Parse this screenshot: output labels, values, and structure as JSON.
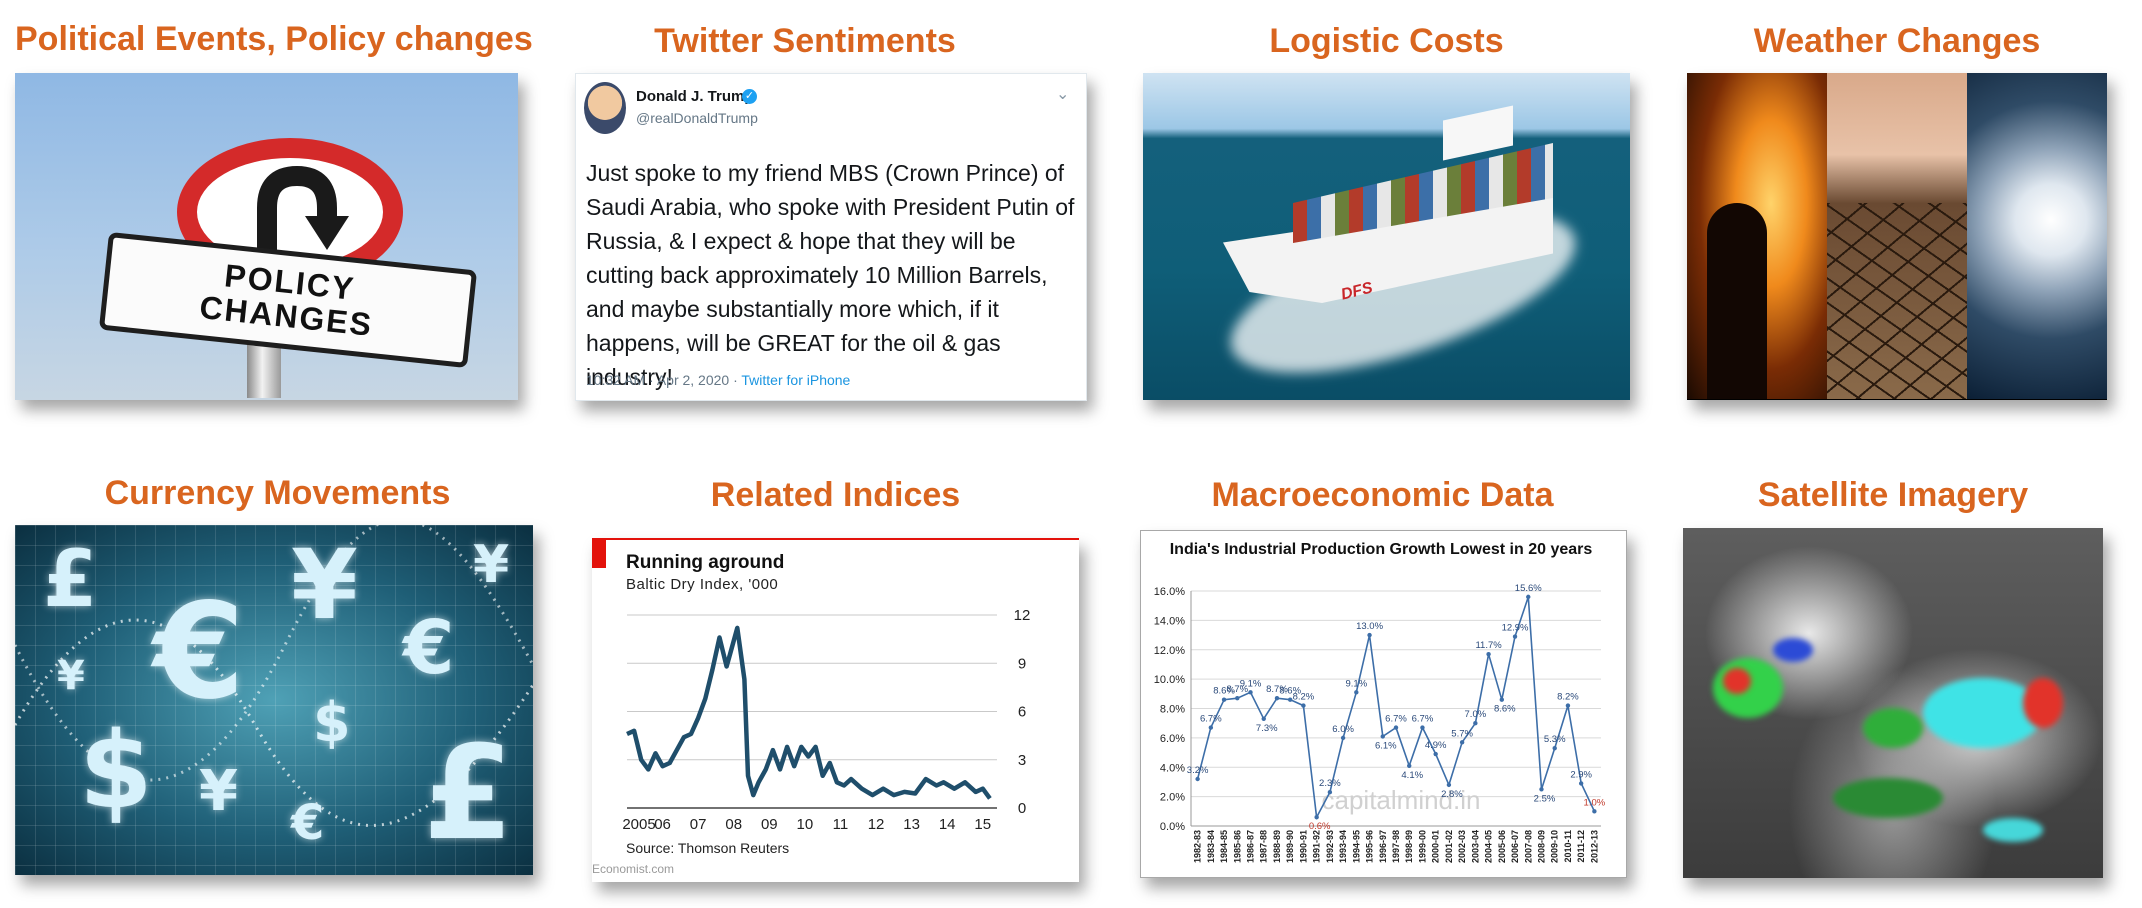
{
  "titles": {
    "political": "Political Events, Policy changes",
    "twitter": "Twitter Sentiments",
    "logistic": "Logistic Costs",
    "weather": "Weather Changes",
    "currency": "Currency Movements",
    "indices": "Related Indices",
    "macro": "Macroeconomic Data",
    "satellite": "Satellite Imagery"
  },
  "policy_sign": {
    "line1": "POLICY",
    "line2": "CHANGES"
  },
  "tweet": {
    "name": "Donald J. Trump",
    "handle": "@realDonaldTrump",
    "text": "Just spoke to my friend MBS (Crown Prince) of Saudi Arabia, who spoke with President Putin of Russia, & I expect & hope that they will be cutting back approximately 10 Million Barrels, and maybe substantially more which, if it happens, will be GREAT for the oil & gas industry!",
    "timestamp": "10:32 AM · Apr 2, 2020 · ",
    "source": "Twitter for iPhone"
  },
  "ship": {
    "hull_text": "DFS"
  },
  "currency_symbols": [
    "£",
    "¥",
    "¥",
    "€",
    "€",
    "¥",
    "$",
    "$",
    "¥",
    "€",
    "£"
  ],
  "colors": {
    "title_orange": "#d9651f",
    "economist_red": "#e3120b",
    "line_teal": "#1f4e6b",
    "macro_line": "#3d6ea8"
  },
  "chart_data": [
    {
      "type": "line",
      "title": "Running aground",
      "subtitle": "Baltic Dry Index, '000",
      "source": "Source: Thomson Reuters",
      "brand": "Economist.com",
      "x_ticks": [
        "2005",
        "06",
        "07",
        "08",
        "09",
        "10",
        "11",
        "12",
        "13",
        "14",
        "15"
      ],
      "y_ticks": [
        0,
        3,
        6,
        9,
        12
      ],
      "ylim": [
        0,
        12
      ],
      "xlim": [
        2005,
        2015.4
      ],
      "grid": true,
      "series": [
        {
          "x": [
            2005.0,
            2005.2,
            2005.4,
            2005.6,
            2005.8,
            2006.0,
            2006.2,
            2006.4,
            2006.6,
            2006.8,
            2007.0,
            2007.2,
            2007.4,
            2007.6,
            2007.8,
            2007.9,
            2008.1,
            2008.3,
            2008.4,
            2008.55,
            2008.7,
            2008.9,
            2009.1,
            2009.3,
            2009.5,
            2009.7,
            2009.9,
            2010.1,
            2010.3,
            2010.5,
            2010.7,
            2010.9,
            2011.1,
            2011.3,
            2011.6,
            2011.9,
            2012.2,
            2012.5,
            2012.8,
            2013.1,
            2013.4,
            2013.7,
            2013.9,
            2014.2,
            2014.5,
            2014.8,
            2015.0,
            2015.2
          ],
          "y": [
            4.6,
            4.8,
            3.0,
            2.4,
            3.4,
            2.6,
            2.8,
            3.6,
            4.4,
            4.6,
            5.6,
            6.8,
            8.6,
            10.6,
            8.8,
            9.6,
            11.2,
            8.0,
            2.0,
            0.8,
            1.6,
            2.4,
            3.6,
            2.4,
            3.8,
            2.6,
            3.8,
            3.2,
            3.8,
            2.0,
            2.8,
            1.6,
            1.4,
            1.8,
            1.2,
            0.8,
            1.2,
            0.8,
            1.0,
            0.9,
            1.8,
            1.4,
            1.6,
            1.2,
            1.6,
            1.0,
            1.2,
            0.6
          ]
        }
      ]
    },
    {
      "type": "line",
      "title": "India's Industrial Production Growth Lowest in 20 years",
      "categories": [
        "1982-83",
        "1983-84",
        "1984-85",
        "1985-86",
        "1986-87",
        "1987-88",
        "1988-89",
        "1989-90",
        "1990-91",
        "1991-92",
        "1992-93",
        "1993-94",
        "1994-95",
        "1995-96",
        "1996-97",
        "1997-98",
        "1998-99",
        "1999-00",
        "2000-01",
        "2001-02",
        "2002-03",
        "2003-04",
        "2004-05",
        "2005-06",
        "2006-07",
        "2007-08",
        "2008-09",
        "2009-10",
        "2010-11",
        "2011-12",
        "2012-13"
      ],
      "values": [
        3.2,
        6.7,
        8.6,
        8.7,
        9.1,
        7.3,
        8.7,
        8.6,
        8.2,
        0.6,
        2.3,
        6.0,
        9.1,
        13.0,
        6.1,
        6.7,
        4.1,
        6.7,
        4.9,
        2.8,
        5.7,
        7.0,
        11.7,
        8.6,
        12.9,
        15.6,
        2.5,
        5.3,
        8.2,
        2.9,
        1.0
      ],
      "data_labels": [
        "3.2%",
        "6.7%",
        "8.6%",
        "8.7%",
        "9.1%",
        "7.3%",
        "8.7%",
        "8.6%",
        "8.2%",
        "0.6%",
        "2.3%",
        "6.0%",
        "9.1%",
        "13.0%",
        "6.1%",
        "6.7%",
        "4.1%",
        "6.7%",
        "4.9%",
        "2.8%",
        "5.7%",
        "7.0%",
        "11.7%",
        "8.6%",
        "12.9%",
        "15.6%",
        "2.5%",
        "5.3%",
        "8.2%",
        "2.9%",
        "1.0%"
      ],
      "highlighted_labels": [
        "0.6%",
        "1.0%"
      ],
      "y_ticks": [
        "0.0%",
        "2.0%",
        "4.0%",
        "6.0%",
        "8.0%",
        "10.0%",
        "12.0%",
        "14.0%",
        "16.0%"
      ],
      "ylim": [
        0,
        16
      ],
      "grid": true,
      "watermark": "capitalmind.in"
    }
  ]
}
